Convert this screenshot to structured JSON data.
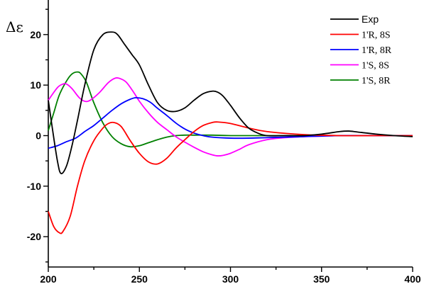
{
  "chart_data": {
    "type": "line",
    "title": "",
    "xlabel": "",
    "ylabel": "Δε",
    "xlim": [
      200,
      400
    ],
    "ylim": [
      -26,
      26
    ],
    "grid": false,
    "legend_position": "top-right",
    "x_ticks": [
      200,
      250,
      300,
      350,
      400
    ],
    "x_tick_labels": [
      "200",
      "250",
      "300",
      "350",
      "400"
    ],
    "y_ticks": [
      -20,
      -10,
      0,
      10,
      20
    ],
    "y_tick_labels": [
      "-20",
      "-10",
      "0",
      "10",
      "20"
    ],
    "series": [
      {
        "name": "Exp",
        "color": "#000000",
        "x": [
          200,
          202,
          205,
          207,
          210,
          213,
          216,
          220,
          225,
          230,
          235,
          238,
          242,
          246,
          250,
          255,
          260,
          265,
          270,
          275,
          280,
          285,
          290,
          293,
          296,
          300,
          305,
          310,
          315,
          320,
          330,
          340,
          350,
          360,
          365,
          370,
          380,
          390,
          400
        ],
        "y": [
          7,
          2,
          -5,
          -7.5,
          -6,
          -2,
          3,
          10,
          17,
          20,
          20.5,
          20,
          18,
          16,
          14,
          10,
          6.5,
          5,
          4.8,
          5.5,
          7,
          8.3,
          8.8,
          8.6,
          7.8,
          6,
          3.5,
          1.5,
          0.5,
          0,
          0,
          0,
          0.3,
          0.8,
          0.9,
          0.7,
          0.3,
          0,
          -0.2
        ]
      },
      {
        "name": "1'R, 8S",
        "color": "#ff0000",
        "x": [
          200,
          203,
          206,
          208,
          212,
          216,
          220,
          225,
          230,
          233,
          236,
          240,
          245,
          250,
          255,
          260,
          265,
          270,
          275,
          280,
          285,
          290,
          293,
          300,
          310,
          320,
          340,
          360,
          380,
          400
        ],
        "y": [
          -15,
          -18,
          -19.2,
          -19,
          -16,
          -10,
          -5,
          -1,
          1.5,
          2.4,
          2.6,
          1.8,
          -1,
          -3.5,
          -5.2,
          -5.6,
          -4.5,
          -2.5,
          -0.8,
          0.8,
          2,
          2.6,
          2.7,
          2.4,
          1.5,
          0.8,
          0.2,
          0,
          0,
          0
        ]
      },
      {
        "name": "1'R, 8R",
        "color": "#0000ff",
        "x": [
          200,
          205,
          210,
          215,
          220,
          225,
          230,
          235,
          240,
          245,
          248,
          252,
          256,
          260,
          265,
          270,
          275,
          280,
          285,
          290,
          300,
          310,
          320,
          340,
          360,
          380,
          400
        ],
        "y": [
          -2.5,
          -2,
          -1.2,
          -0.5,
          0.8,
          2,
          3.5,
          5,
          6.3,
          7.2,
          7.5,
          7.3,
          6.6,
          5.4,
          4,
          2.5,
          1.3,
          0.5,
          0,
          -0.3,
          -0.5,
          -0.5,
          -0.4,
          -0.2,
          0,
          0,
          0
        ]
      },
      {
        "name": "1'S, 8S",
        "color": "#ff00ff",
        "x": [
          200,
          205,
          208,
          210,
          213,
          217,
          220,
          223,
          228,
          233,
          237,
          240,
          243,
          247,
          250,
          255,
          260,
          265,
          270,
          275,
          280,
          285,
          290,
          293,
          296,
          300,
          305,
          310,
          320,
          330,
          340,
          350,
          360,
          380,
          400
        ],
        "y": [
          7,
          9.5,
          10.2,
          10.2,
          9.3,
          7.5,
          6.8,
          7,
          8.5,
          10.5,
          11.4,
          11.2,
          10.5,
          8.5,
          6.8,
          4.5,
          2.6,
          1.2,
          -0.2,
          -1.3,
          -2.3,
          -3.2,
          -3.8,
          -4,
          -3.9,
          -3.5,
          -2.7,
          -1.8,
          -0.8,
          -0.4,
          -0.2,
          -0.1,
          0,
          0,
          0
        ]
      },
      {
        "name": "1'S, 8R",
        "color": "#008000",
        "x": [
          200,
          203,
          206,
          210,
          213,
          216,
          218,
          221,
          225,
          230,
          235,
          240,
          245,
          250,
          255,
          260,
          265,
          270,
          275,
          280,
          290,
          300,
          320,
          350,
          400
        ],
        "y": [
          1,
          4.5,
          8,
          10.8,
          12.2,
          12.6,
          12.2,
          10.5,
          6.5,
          2.5,
          -0.2,
          -1.6,
          -2.2,
          -2,
          -1.4,
          -0.8,
          -0.3,
          0,
          0.1,
          0.1,
          0.1,
          0,
          0,
          0,
          0
        ]
      }
    ]
  }
}
